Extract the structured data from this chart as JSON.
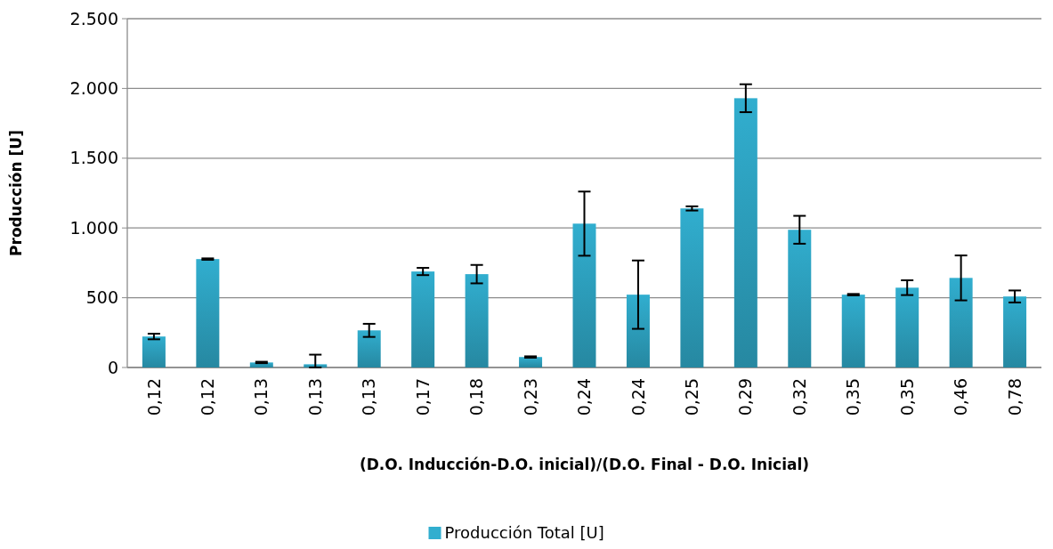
{
  "chart_data": {
    "type": "bar",
    "xlabel": "(D.O. Inducción-D.O. inicial)/(D.O. Final - D.O. Inicial)",
    "ylabel": "Producción [U]",
    "categories": [
      "0,12",
      "0,12",
      "0,13",
      "0,13",
      "0,13",
      "0,17",
      "0,18",
      "0,23",
      "0,24",
      "0,24",
      "0,25",
      "0,29",
      "0,32",
      "0,35",
      "0,35",
      "0,46",
      "0,78"
    ],
    "series": [
      {
        "name": "Producción Total [U]",
        "color": "#31aecf",
        "values": [
          222,
          777,
          36,
          23,
          266,
          688,
          669,
          75,
          1031,
          522,
          1140,
          1930,
          987,
          522,
          572,
          642,
          509
        ],
        "errors": [
          20,
          5,
          5,
          [
            0,
            92
          ],
          47,
          26,
          66,
          5,
          230,
          245,
          15,
          100,
          100,
          5,
          53,
          161,
          43
        ]
      }
    ],
    "ylim": [
      0,
      2500
    ],
    "yticks": [
      {
        "value": 0,
        "label": "0"
      },
      {
        "value": 500,
        "label": "500"
      },
      {
        "value": 1000,
        "label": "1.000"
      },
      {
        "value": 1500,
        "label": "1.500"
      },
      {
        "value": 2000,
        "label": "2.000"
      },
      {
        "value": 2500,
        "label": "2.500"
      }
    ],
    "grid": "y",
    "legend": "bottom"
  }
}
